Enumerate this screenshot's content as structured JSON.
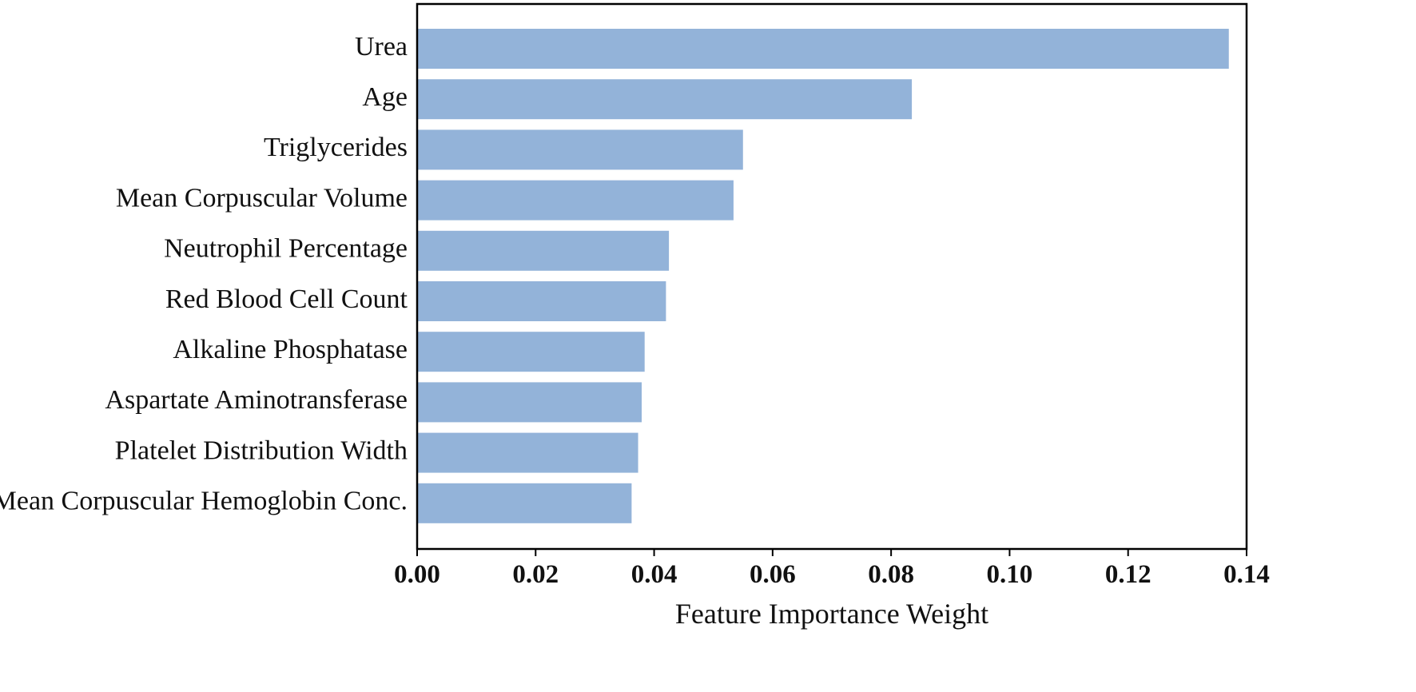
{
  "chart_data": {
    "type": "bar",
    "orientation": "horizontal",
    "categories": [
      "Urea",
      "Age",
      "Triglycerides",
      "Mean Corpuscular Volume",
      "Neutrophil Percentage",
      "Red Blood Cell Count",
      "Alkaline Phosphatase",
      "Aspartate Aminotransferase",
      "Platelet Distribution Width",
      "Mean Corpuscular Hemoglobin Conc."
    ],
    "values": [
      0.137,
      0.0835,
      0.055,
      0.0534,
      0.0425,
      0.042,
      0.0384,
      0.0379,
      0.0373,
      0.0362
    ],
    "xlabel": "Feature Importance Weight",
    "ylabel": "",
    "xlim": [
      0,
      0.14
    ],
    "x_ticks": [
      0.0,
      0.02,
      0.04,
      0.06,
      0.08,
      0.1,
      0.12,
      0.14
    ],
    "x_tick_labels": [
      "0.00",
      "0.02",
      "0.04",
      "0.06",
      "0.08",
      "0.10",
      "0.12",
      "0.14"
    ],
    "bar_color": "#93b3d9",
    "grid": false,
    "legend": "none"
  }
}
